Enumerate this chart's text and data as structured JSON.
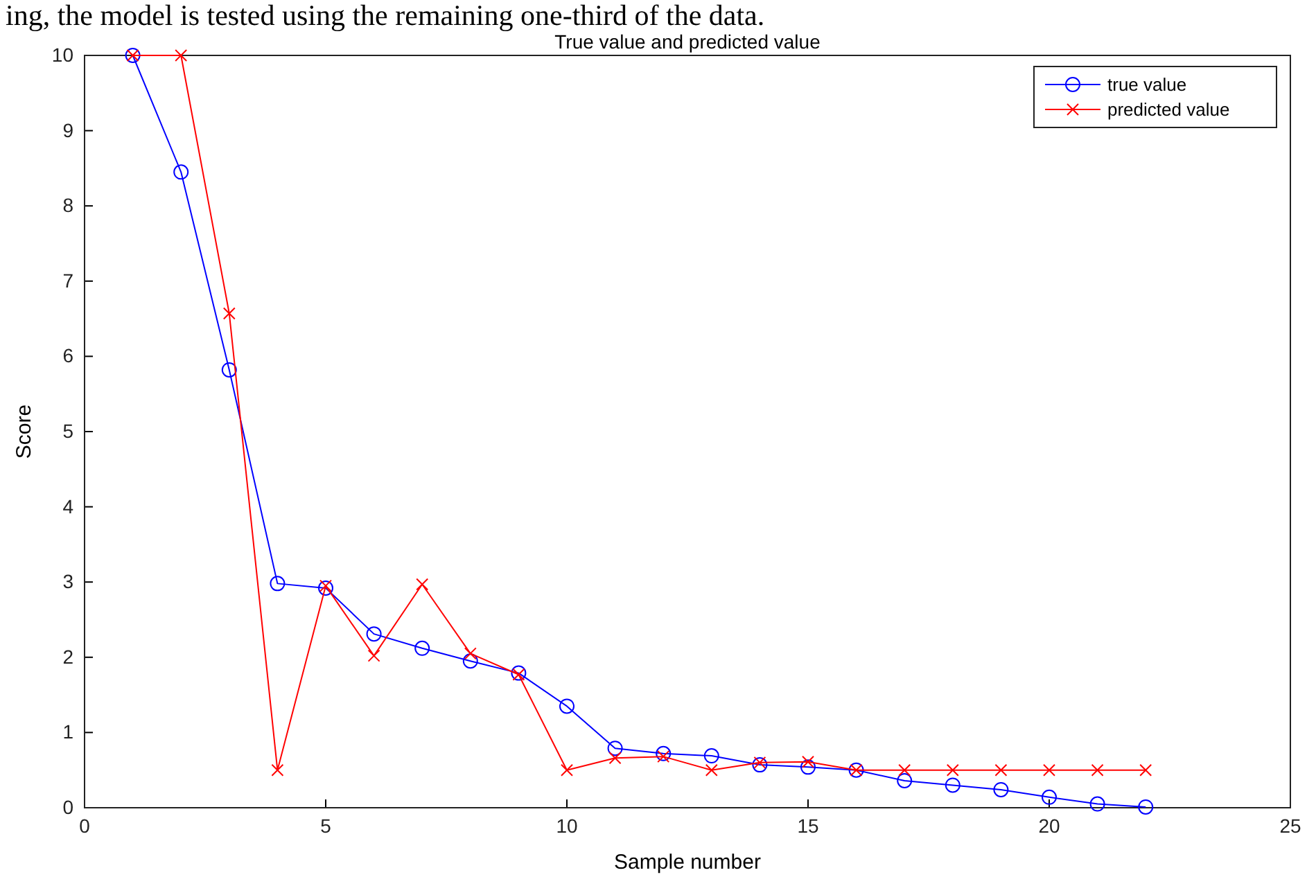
{
  "chart_data": {
    "type": "line",
    "title": "True value and predicted value",
    "xlabel": "Sample number",
    "ylabel": "Score",
    "annotations": [
      "ing, the model is tested using the remaining one-third of the data."
    ],
    "x": [
      1,
      2,
      3,
      4,
      5,
      6,
      7,
      8,
      9,
      10,
      11,
      12,
      13,
      14,
      15,
      16,
      17,
      18,
      19,
      20,
      21,
      22
    ],
    "series": [
      {
        "name": "true value",
        "color": "#0000ff",
        "marker": "circle",
        "values": [
          10,
          8.45,
          5.82,
          2.98,
          2.92,
          2.31,
          2.12,
          1.95,
          1.79,
          1.35,
          0.79,
          0.72,
          0.69,
          0.57,
          0.54,
          0.5,
          0.36,
          0.3,
          0.24,
          0.14,
          0.05,
          0.01
        ]
      },
      {
        "name": "predicted value",
        "color": "#ff0000",
        "marker": "cross",
        "values": [
          10,
          10,
          6.57,
          0.5,
          2.95,
          2.02,
          2.97,
          2.05,
          1.77,
          0.5,
          0.66,
          0.68,
          0.5,
          0.6,
          0.61,
          0.5,
          0.5,
          0.5,
          0.5,
          0.5,
          0.5,
          0.5
        ]
      }
    ],
    "xlim": [
      0,
      25
    ],
    "xticks": [
      0,
      5,
      10,
      15,
      20,
      25
    ],
    "ylim": [
      0,
      10
    ],
    "yticks": [
      0,
      1,
      2,
      3,
      4,
      5,
      6,
      7,
      8,
      9,
      10
    ],
    "grid": false,
    "legend": "top right",
    "line_style": "solid"
  }
}
